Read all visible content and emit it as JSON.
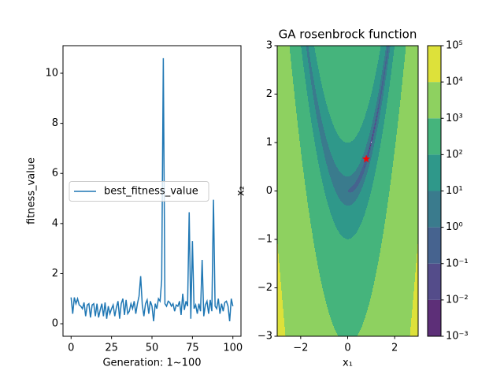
{
  "chart_data": [
    {
      "type": "line",
      "xlabel": "Generation: 1~100",
      "ylabel": "fitness_value",
      "x": [
        0,
        1,
        2,
        3,
        4,
        5,
        6,
        7,
        8,
        9,
        10,
        11,
        12,
        13,
        14,
        15,
        16,
        17,
        18,
        19,
        20,
        21,
        22,
        23,
        24,
        25,
        26,
        27,
        28,
        29,
        30,
        31,
        32,
        33,
        34,
        35,
        36,
        37,
        38,
        39,
        40,
        41,
        42,
        43,
        44,
        45,
        46,
        47,
        48,
        49,
        50,
        51,
        52,
        53,
        54,
        55,
        56,
        57,
        58,
        59,
        60,
        61,
        62,
        63,
        64,
        65,
        66,
        67,
        68,
        69,
        70,
        71,
        72,
        73,
        74,
        75,
        76,
        77,
        78,
        79,
        80,
        81,
        82,
        83,
        84,
        85,
        86,
        87,
        88,
        89,
        90,
        91,
        92,
        93,
        94,
        95,
        96,
        97,
        98,
        99,
        100
      ],
      "series": [
        {
          "name": "best_fitness_value",
          "color": "#1f77b4",
          "values": [
            1.05,
            0.4,
            1.05,
            0.8,
            1.0,
            0.75,
            0.7,
            0.6,
            0.85,
            0.3,
            0.75,
            0.8,
            0.25,
            0.75,
            0.8,
            0.3,
            0.8,
            0.25,
            0.55,
            0.8,
            0.3,
            0.85,
            0.2,
            0.7,
            0.4,
            0.6,
            0.75,
            0.3,
            0.65,
            0.9,
            0.2,
            0.8,
            1.0,
            0.35,
            0.95,
            0.4,
            0.5,
            0.8,
            0.6,
            0.9,
            0.4,
            0.8,
            1.1,
            1.9,
            0.75,
            0.3,
            0.8,
            0.95,
            0.4,
            0.9,
            0.7,
            0.1,
            0.8,
            0.6,
            1.0,
            0.9,
            1.75,
            10.6,
            0.8,
            0.7,
            0.9,
            0.85,
            0.7,
            0.8,
            0.5,
            0.75,
            0.7,
            0.9,
            0.35,
            1.2,
            0.55,
            0.9,
            0.7,
            4.45,
            0.2,
            3.3,
            0.6,
            0.75,
            0.4,
            0.8,
            0.5,
            2.55,
            0.3,
            0.75,
            0.9,
            0.4,
            0.95,
            0.5,
            4.95,
            0.7,
            0.6,
            1.0,
            0.4,
            0.8,
            0.5,
            0.85,
            0.9,
            0.7,
            0.1,
            1.0,
            0.7
          ]
        }
      ],
      "xlim": [
        -5,
        105
      ],
      "xticks": [
        0,
        25,
        50,
        75,
        100
      ],
      "ylim": [
        -0.5,
        11.1
      ],
      "yticks": [
        0,
        2,
        4,
        6,
        8,
        10
      ],
      "legend": "center left"
    },
    {
      "type": "contour",
      "title": "GA rosenbrock function",
      "xlabel": "x₁",
      "ylabel": "x₂",
      "xlim": [
        -3,
        3
      ],
      "xticks": [
        {
          "value": -2,
          "label": "−2"
        },
        0,
        2
      ],
      "ylim": [
        -3,
        3
      ],
      "yticks": [
        {
          "value": -3,
          "label": "−3"
        },
        {
          "value": -2,
          "label": "−2"
        },
        {
          "value": -1,
          "label": "−1"
        },
        0,
        1,
        2,
        3
      ],
      "levels": [
        {
          "value": 0.001,
          "label": "10⁻³"
        },
        {
          "value": 0.01,
          "label": "10⁻²"
        },
        {
          "value": 0.1,
          "label": "10⁻¹"
        },
        {
          "value": 1,
          "label": "10⁰"
        },
        {
          "value": 10,
          "label": "10¹"
        },
        {
          "value": 100,
          "label": "10²"
        },
        {
          "value": 1000,
          "label": "10³"
        },
        {
          "value": 10000,
          "label": "10⁴"
        },
        {
          "value": 100000,
          "label": "10⁵"
        }
      ],
      "colors": [
        "#5d2f78",
        "#544c8a",
        "#46638f",
        "#3a7b8d",
        "#2f988a",
        "#45b47c",
        "#8ed160",
        "#dde13a"
      ],
      "colorbar_scale": "log",
      "series": [
        {
          "x": [
            0.79
          ],
          "y": [
            0.66
          ],
          "color": "#ff0000",
          "marker": "star"
        }
      ]
    }
  ]
}
